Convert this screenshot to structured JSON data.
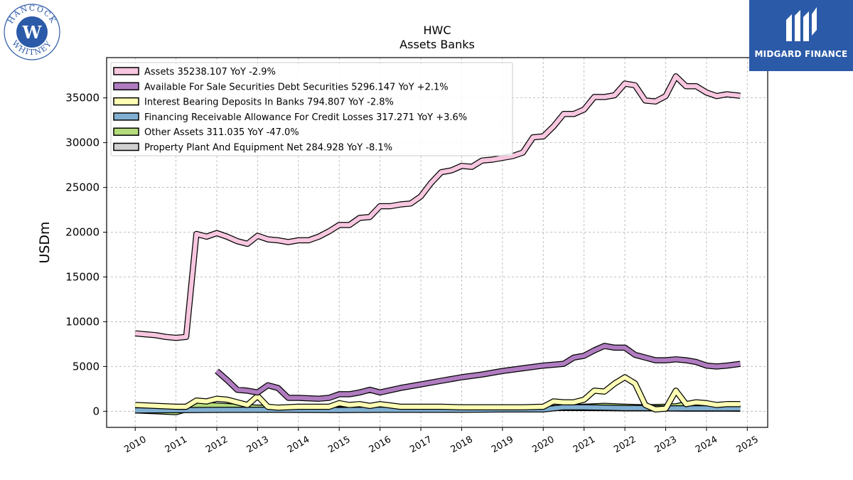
{
  "logos": {
    "left_arc_top": "HANCOCK",
    "left_arc_bottom": "WHITNEY",
    "right_brand": "MIDGARD FINANCE"
  },
  "colors": {
    "assets": "#f7c6df",
    "afs": "#b07cc0",
    "ibd": "#fdfdb4",
    "allowance": "#80afd1",
    "other": "#b4dc7c",
    "ppe": "#d0d0d0",
    "logo_blue": "#2b5aa8"
  },
  "chart_data": {
    "type": "line",
    "title": "HWC",
    "subtitle": "Assets Banks",
    "ylabel": "USDm",
    "xlabel": "",
    "xlim": [
      2009.3,
      2025.5
    ],
    "ylim": [
      -1800,
      39500
    ],
    "x_ticks": [
      "2010",
      "2011",
      "2012",
      "2013",
      "2014",
      "2015",
      "2016",
      "2017",
      "2018",
      "2019",
      "2020",
      "2021",
      "2022",
      "2023",
      "2024",
      "2025"
    ],
    "y_ticks": [
      "0",
      "5000",
      "10000",
      "15000",
      "20000",
      "25000",
      "30000",
      "35000"
    ],
    "grid": true,
    "legend_position": "top-left",
    "series": [
      {
        "key": "assets",
        "legend": "Assets  35238.107 YoY -2.9%",
        "x": [
          2010.0,
          2010.25,
          2010.5,
          2010.75,
          2011.0,
          2011.25,
          2011.5,
          2011.75,
          2012.0,
          2012.25,
          2012.5,
          2012.75,
          2013.0,
          2013.25,
          2013.5,
          2013.75,
          2014.0,
          2014.25,
          2014.5,
          2014.75,
          2015.0,
          2015.25,
          2015.5,
          2015.75,
          2016.0,
          2016.25,
          2016.5,
          2016.75,
          2017.0,
          2017.25,
          2017.5,
          2017.75,
          2018.0,
          2018.25,
          2018.5,
          2018.75,
          2019.0,
          2019.25,
          2019.5,
          2019.75,
          2020.0,
          2020.25,
          2020.5,
          2020.75,
          2021.0,
          2021.25,
          2021.5,
          2021.75,
          2022.0,
          2022.25,
          2022.5,
          2022.75,
          2023.0,
          2023.25,
          2023.5,
          2023.75,
          2024.0,
          2024.25,
          2024.5,
          2024.83
        ],
        "y": [
          8700,
          8600,
          8500,
          8300,
          8200,
          8300,
          19800,
          19500,
          19900,
          19500,
          19000,
          18700,
          19600,
          19200,
          19100,
          18900,
          19100,
          19100,
          19500,
          20100,
          20800,
          20800,
          21600,
          21700,
          22900,
          22900,
          23100,
          23200,
          24000,
          25500,
          26700,
          26900,
          27400,
          27300,
          28000,
          28100,
          28300,
          28500,
          28900,
          30600,
          30700,
          31800,
          33200,
          33200,
          33700,
          35100,
          35100,
          35300,
          36600,
          36400,
          34700,
          34600,
          35200,
          37400,
          36300,
          36300,
          35600,
          35200,
          35400,
          35238
        ]
      },
      {
        "key": "afs",
        "legend": "Available For Sale Securities Debt Securities  5296.147 YoY +2.1%",
        "x": [
          2012.0,
          2012.25,
          2012.5,
          2012.75,
          2013.0,
          2013.25,
          2013.5,
          2013.75,
          2014.0,
          2014.25,
          2014.5,
          2014.75,
          2015.0,
          2015.25,
          2015.5,
          2015.75,
          2016.0,
          2016.5,
          2017.0,
          2017.5,
          2018.0,
          2018.5,
          2019.0,
          2019.5,
          2020.0,
          2020.5,
          2020.75,
          2021.0,
          2021.25,
          2021.5,
          2021.75,
          2022.0,
          2022.25,
          2022.5,
          2022.75,
          2023.0,
          2023.25,
          2023.5,
          2023.75,
          2024.0,
          2024.25,
          2024.5,
          2024.83
        ],
        "y": [
          4500,
          3500,
          2400,
          2300,
          2100,
          2900,
          2600,
          1500,
          1500,
          1450,
          1400,
          1500,
          1900,
          1900,
          2100,
          2400,
          2100,
          2600,
          3000,
          3400,
          3800,
          4100,
          4500,
          4800,
          5100,
          5300,
          6000,
          6200,
          6800,
          7300,
          7100,
          7100,
          6300,
          6000,
          5700,
          5700,
          5800,
          5700,
          5500,
          5100,
          5000,
          5100,
          5296
        ]
      },
      {
        "key": "ibd",
        "legend": "Interest Bearing Deposits In Banks  794.807 YoY -2.8%",
        "x": [
          2010.0,
          2010.5,
          2011.0,
          2011.25,
          2011.5,
          2011.75,
          2012.0,
          2012.25,
          2012.5,
          2012.75,
          2013.0,
          2013.25,
          2013.5,
          2014.0,
          2014.5,
          2014.75,
          2015.0,
          2015.25,
          2015.5,
          2015.75,
          2016.0,
          2016.5,
          2017.0,
          2017.5,
          2018.0,
          2018.5,
          2019.0,
          2019.5,
          2020.0,
          2020.25,
          2020.5,
          2020.75,
          2021.0,
          2021.25,
          2021.5,
          2021.75,
          2022.0,
          2022.25,
          2022.5,
          2022.75,
          2023.0,
          2023.25,
          2023.5,
          2023.75,
          2024.0,
          2024.25,
          2024.5,
          2024.83
        ],
        "y": [
          700,
          600,
          500,
          500,
          1200,
          1100,
          1400,
          1300,
          1000,
          700,
          1700,
          500,
          400,
          500,
          500,
          500,
          900,
          700,
          800,
          600,
          800,
          500,
          500,
          500,
          450,
          450,
          450,
          450,
          500,
          1100,
          1000,
          1000,
          1300,
          2300,
          2200,
          3100,
          3800,
          3100,
          700,
          200,
          300,
          2300,
          800,
          1000,
          900,
          700,
          800,
          795
        ]
      },
      {
        "key": "allowance",
        "legend": "Financing Receivable Allowance For Credit Losses  317.271 YoY +3.6%",
        "x": [
          2010.0,
          2011.0,
          2012.0,
          2013.0,
          2014.0,
          2015.0,
          2016.0,
          2017.0,
          2018.0,
          2019.0,
          2020.0,
          2020.5,
          2021.0,
          2021.5,
          2022.0,
          2022.5,
          2023.0,
          2023.5,
          2024.0,
          2024.83
        ],
        "y": [
          100,
          120,
          150,
          170,
          150,
          140,
          160,
          170,
          170,
          200,
          200,
          450,
          450,
          400,
          350,
          350,
          330,
          330,
          320,
          317
        ]
      },
      {
        "key": "other",
        "legend": "Other Assets  311.035 YoY -47.0%",
        "x": [
          2010.0,
          2010.5,
          2011.0,
          2011.25,
          2011.5,
          2012.0,
          2012.5,
          2013.0,
          2013.5,
          2014.0,
          2014.5,
          2015.0,
          2015.5,
          2016.0,
          2016.5,
          2017.0,
          2017.5,
          2018.0,
          2018.5,
          2019.0,
          2019.5,
          2020.0,
          2020.5,
          2021.0,
          2021.5,
          2022.0,
          2022.5,
          2023.0,
          2023.25,
          2023.5,
          2023.75,
          2024.0,
          2024.5,
          2024.83
        ],
        "y": [
          100,
          0,
          -100,
          200,
          700,
          650,
          500,
          400,
          350,
          300,
          250,
          200,
          200,
          250,
          250,
          300,
          300,
          200,
          250,
          300,
          300,
          300,
          400,
          500,
          600,
          500,
          450,
          500,
          550,
          800,
          900,
          700,
          600,
          311
        ]
      },
      {
        "key": "ppe",
        "legend": "Property Plant And Equipment Net  284.928 YoY -8.1%",
        "x": [
          2010.0,
          2010.5,
          2011.0,
          2011.5,
          2012.0,
          2012.5,
          2013.0,
          2013.5,
          2014.0,
          2014.5,
          2015.0,
          2015.5,
          2016.0,
          2016.5,
          2017.0,
          2017.5,
          2018.0,
          2018.5,
          2019.0,
          2019.5,
          2020.0,
          2020.5,
          2021.0,
          2021.5,
          2022.0,
          2022.5,
          2023.0,
          2023.5,
          2024.0,
          2024.83
        ],
        "y": [
          230,
          220,
          210,
          350,
          380,
          400,
          390,
          390,
          380,
          380,
          370,
          370,
          380,
          380,
          380,
          380,
          370,
          370,
          370,
          380,
          380,
          380,
          360,
          350,
          330,
          320,
          310,
          300,
          300,
          285
        ]
      }
    ]
  }
}
